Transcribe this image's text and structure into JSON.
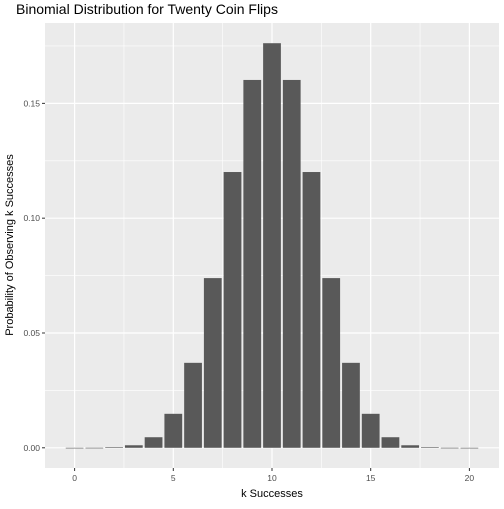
{
  "chart_data": {
    "type": "bar",
    "title": "Binomial Distribution for Twenty Coin Flips",
    "xlabel": "k Successes",
    "ylabel": "Probability of Observing k Successes",
    "x": [
      0,
      1,
      2,
      3,
      4,
      5,
      6,
      7,
      8,
      9,
      10,
      11,
      12,
      13,
      14,
      15,
      16,
      17,
      18,
      19,
      20
    ],
    "values": [
      1e-06,
      2e-05,
      0.0002,
      0.0011,
      0.0046,
      0.0148,
      0.037,
      0.0739,
      0.1201,
      0.1602,
      0.1762,
      0.1602,
      0.1201,
      0.0739,
      0.037,
      0.0148,
      0.0046,
      0.0011,
      0.0002,
      2e-05,
      1e-06
    ],
    "x_ticks": [
      "0",
      "5",
      "10",
      "15",
      "20"
    ],
    "x_tick_values": [
      0,
      5,
      10,
      15,
      20
    ],
    "y_ticks": [
      "0.00",
      "0.05",
      "0.10",
      "0.15"
    ],
    "y_tick_values": [
      0,
      0.05,
      0.1,
      0.15
    ],
    "xlim": [
      -1.5,
      21.5
    ],
    "ylim": [
      -0.0088,
      0.185
    ],
    "grid": true,
    "bar_color": "#595959",
    "panel_color": "#ebebeb",
    "grid_color": "#ffffff"
  }
}
